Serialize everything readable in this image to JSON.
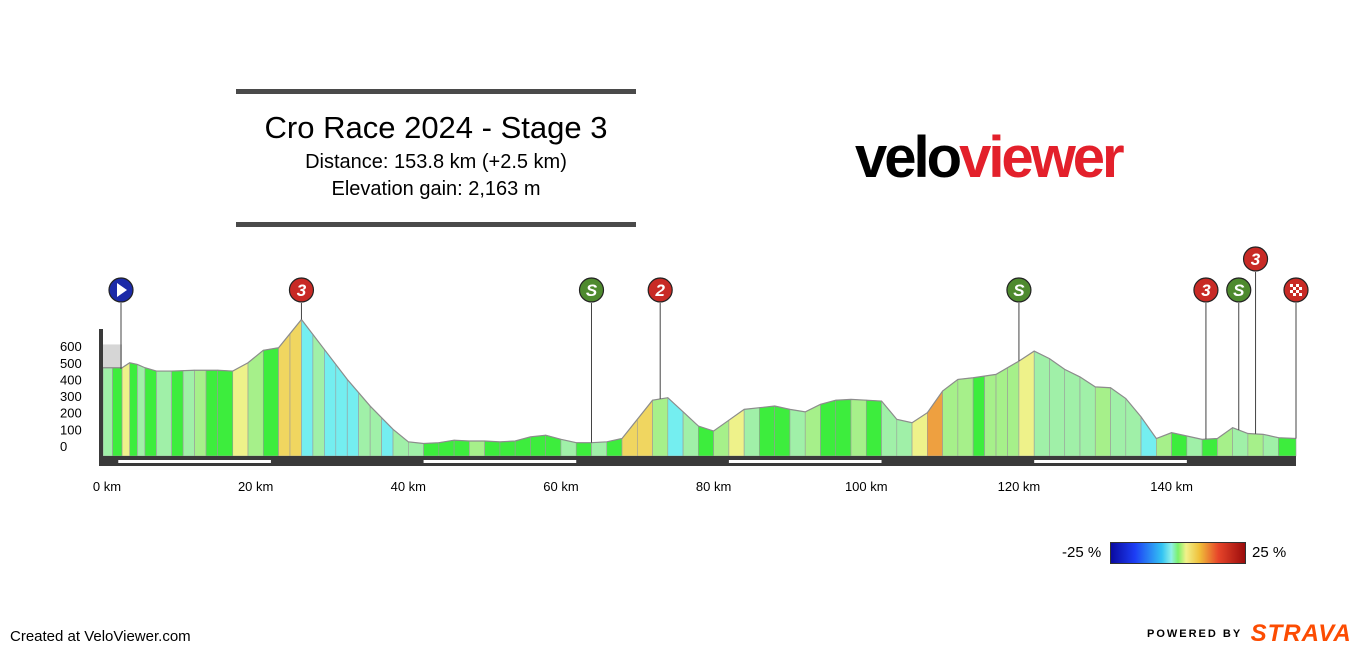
{
  "title": "Cro Race 2024 - Stage 3",
  "distance_text": "Distance: 153.8 km (+2.5 km)",
  "elevation_text": "Elevation gain: 2,163 m",
  "logo": {
    "part1": "velo",
    "part2": "viewer"
  },
  "legend": {
    "min_label": "-25 %",
    "max_label": "25 %"
  },
  "footer": {
    "created": "Created at VeloViewer.com",
    "powered": "POWERED BY",
    "brand": "STRAVA"
  },
  "colors": {
    "brand_red": "#e3202b",
    "strava_orange": "#fc4c02",
    "sprint_green": "#4e8a2e",
    "climb_red": "#c82a25",
    "start_blue": "#1b2aa8"
  },
  "chart_data": {
    "type": "area",
    "xlabel": "",
    "ylabel": "",
    "x_ticks": [
      "0 km",
      "20 km",
      "40 km",
      "60 km",
      "80 km",
      "100 km",
      "120 km",
      "140 km"
    ],
    "x_tick_values": [
      0,
      20,
      40,
      60,
      80,
      100,
      120,
      140
    ],
    "y_ticks": [
      "0",
      "100",
      "200",
      "300",
      "400",
      "500",
      "600"
    ],
    "y_tick_values": [
      0,
      100,
      200,
      300,
      400,
      500,
      600
    ],
    "xlim": [
      0,
      156.3
    ],
    "ylim": [
      -50,
      760
    ],
    "distance_km": [
      0,
      2.5,
      3.5,
      4.5,
      5.5,
      7,
      9,
      12,
      15,
      17,
      19,
      21,
      23,
      26,
      29,
      32,
      35,
      38,
      40,
      42,
      44,
      46,
      48,
      50,
      52,
      54,
      56,
      58,
      60,
      62,
      64,
      66,
      68,
      70,
      72,
      74,
      76,
      78,
      80,
      82,
      84,
      86,
      88,
      90,
      92,
      94,
      96,
      98,
      100,
      102,
      104,
      106,
      108,
      110,
      112,
      114,
      117,
      120,
      122,
      124,
      126,
      128,
      130,
      132,
      134,
      136,
      138,
      140,
      142,
      144,
      146,
      148,
      150,
      152,
      154,
      156.3
    ],
    "elevation_m": [
      470,
      470,
      500,
      490,
      470,
      450,
      450,
      455,
      455,
      450,
      500,
      575,
      590,
      760,
      580,
      400,
      240,
      100,
      25,
      15,
      20,
      35,
      30,
      30,
      25,
      30,
      55,
      65,
      40,
      20,
      20,
      25,
      45,
      160,
      275,
      290,
      205,
      120,
      90,
      155,
      220,
      230,
      240,
      220,
      205,
      250,
      275,
      280,
      275,
      270,
      160,
      140,
      200,
      330,
      400,
      410,
      430,
      510,
      570,
      525,
      460,
      415,
      355,
      350,
      285,
      175,
      45,
      80,
      60,
      40,
      45,
      110,
      75,
      70,
      50,
      45
    ],
    "markers": [
      {
        "type": "start",
        "label": "",
        "km": 0
      },
      {
        "type": "climb",
        "label": "3",
        "km": 26
      },
      {
        "type": "sprint",
        "label": "S",
        "km": 64
      },
      {
        "type": "climb",
        "label": "2",
        "km": 73
      },
      {
        "type": "sprint",
        "label": "S",
        "km": 120
      },
      {
        "type": "climb",
        "label": "3",
        "km": 144.5
      },
      {
        "type": "sprint",
        "label": "S",
        "km": 148.8
      },
      {
        "type": "climb",
        "label": "3",
        "km": 151
      },
      {
        "type": "finish",
        "label": "",
        "km": 156.3
      }
    ]
  }
}
